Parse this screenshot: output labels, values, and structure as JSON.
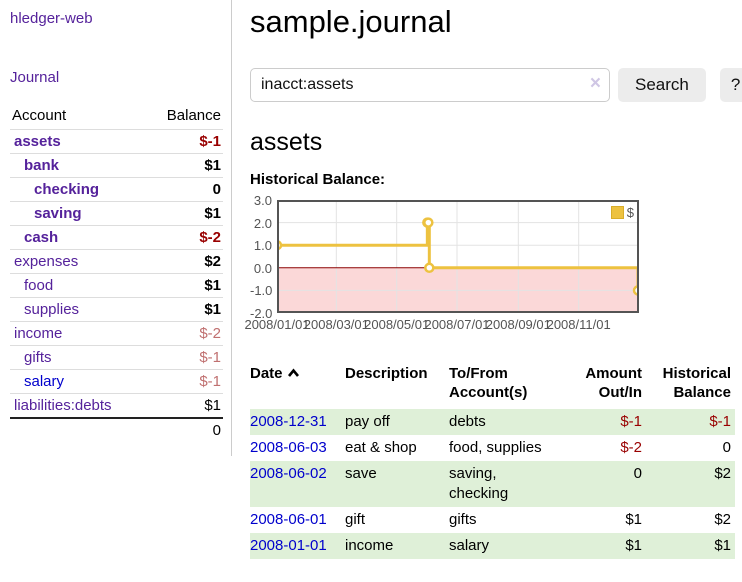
{
  "app": {
    "title": "hledger-web",
    "nav_journal": "Journal"
  },
  "sidebar": {
    "header": {
      "account": "Account",
      "balance": "Balance"
    },
    "accounts": [
      {
        "label": "assets",
        "balance": "$-1"
      },
      {
        "label": "bank",
        "balance": "$1"
      },
      {
        "label": "checking",
        "balance": "0"
      },
      {
        "label": "saving",
        "balance": "$1"
      },
      {
        "label": "cash",
        "balance": "$-2"
      },
      {
        "label": "expenses",
        "balance": "$2"
      },
      {
        "label": "food",
        "balance": "$1"
      },
      {
        "label": "supplies",
        "balance": "$1"
      },
      {
        "label": "income",
        "balance": "$-2"
      },
      {
        "label": "gifts",
        "balance": "$-1"
      },
      {
        "label": "salary",
        "balance": "$-1"
      },
      {
        "label": "liabilities:debts",
        "balance": "$1"
      }
    ],
    "total": "0"
  },
  "header": {
    "title": "sample.journal"
  },
  "search": {
    "value": "inacct:assets",
    "clear_icon": "×",
    "button": "Search",
    "help_button": "?"
  },
  "register": {
    "heading": "assets",
    "chart_label": "Historical Balance:",
    "table": {
      "headers": {
        "date": "Date",
        "description": "Description",
        "accounts": "To/From Account(s)",
        "amount": "Amount Out/In",
        "balance": "Historical Balance"
      },
      "rows": [
        {
          "date": "2008-12-31",
          "description": "pay off",
          "accounts": "debts",
          "amount": "$-1",
          "balance": "$-1"
        },
        {
          "date": "2008-06-03",
          "description": "eat & shop",
          "accounts": "food, supplies",
          "amount": "$-2",
          "balance": "0"
        },
        {
          "date": "2008-06-02",
          "description": "save",
          "accounts": "saving, checking",
          "amount": "0",
          "balance": "$2"
        },
        {
          "date": "2008-06-01",
          "description": "gift",
          "accounts": "gifts",
          "amount": "$1",
          "balance": "$2"
        },
        {
          "date": "2008-01-01",
          "description": "income",
          "accounts": "salary",
          "amount": "$1",
          "balance": "$1"
        }
      ]
    }
  },
  "chart_data": {
    "type": "line",
    "step": true,
    "title": "Historical Balance",
    "series": [
      {
        "name": "$",
        "color": "#edc240",
        "points": [
          [
            "2008-01-01",
            1
          ],
          [
            "2008-06-01",
            2
          ],
          [
            "2008-06-02",
            2
          ],
          [
            "2008-06-03",
            0
          ],
          [
            "2008-12-31",
            -1
          ]
        ]
      }
    ],
    "xlim": [
      "2008-01-01",
      "2009-01-01"
    ],
    "ylim": [
      -2,
      3
    ],
    "xticks": [
      {
        "v": "2008-01-01",
        "label": "2008/01/01"
      },
      {
        "v": "2008-03-01",
        "label": "2008/03/01"
      },
      {
        "v": "2008-05-01",
        "label": "2008/05/01"
      },
      {
        "v": "2008-07-01",
        "label": "2008/07/01"
      },
      {
        "v": "2008-09-01",
        "label": "2008/09/01"
      },
      {
        "v": "2008-11-01",
        "label": "2008/11/01"
      }
    ],
    "yticks": [
      {
        "v": 3,
        "label": "3.0"
      },
      {
        "v": 2,
        "label": "2.0"
      },
      {
        "v": 1,
        "label": "1.0"
      },
      {
        "v": 0,
        "label": "0.0"
      },
      {
        "v": -1,
        "label": "-1.0"
      },
      {
        "v": -2,
        "label": "-2.0"
      }
    ],
    "grid": true,
    "legend_position": "top-right",
    "negative_region_color": "#fbd8d8",
    "zero_line_color": "#8b0000",
    "grid_color": "#e3e3e3",
    "border_color": "#545454"
  },
  "colors": {
    "link_purple": "#55229b",
    "link_blue": "#0000cc",
    "negative_red": "#990000",
    "dim_negative_red": "#c07070",
    "row_stripe_green": "#dff0d8",
    "button_gray": "#ececec",
    "chart_line_gold": "#edc240"
  }
}
